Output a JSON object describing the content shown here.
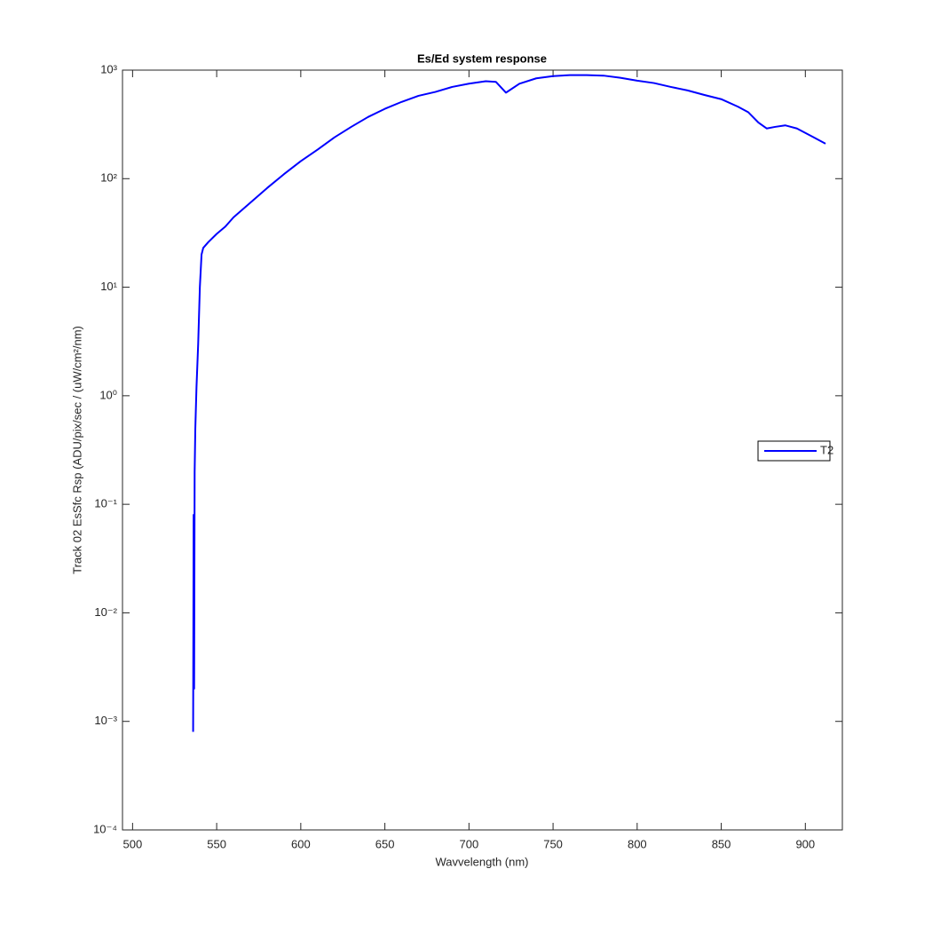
{
  "chart_data": {
    "type": "line",
    "title": "Es/Ed system response",
    "xlabel": "Wavvelength (nm)",
    "ylabel": "Track 02 EsSfc Rsp (ADU/pix/sec / (uW/cm²/nm)",
    "yscale": "log",
    "xlim": [
      494,
      922
    ],
    "ylim": [
      0.0001,
      1000
    ],
    "xticks": [
      500,
      550,
      600,
      650,
      700,
      750,
      800,
      850,
      900
    ],
    "yticks": [
      {
        "value": 0.0001,
        "label": "10⁻⁴"
      },
      {
        "value": 0.001,
        "label": "10⁻³"
      },
      {
        "value": 0.01,
        "label": "10⁻²"
      },
      {
        "value": 0.1,
        "label": "10⁻¹"
      },
      {
        "value": 1,
        "label": "10⁰"
      },
      {
        "value": 10,
        "label": "10¹"
      },
      {
        "value": 100,
        "label": "10²"
      },
      {
        "value": 1000,
        "label": "10³"
      }
    ],
    "legend": "east",
    "x": [
      536,
      536.3,
      536.6,
      536.9,
      537.3,
      538,
      539,
      540,
      541,
      542,
      545,
      550,
      555,
      560,
      570,
      580,
      590,
      600,
      610,
      620,
      630,
      640,
      650,
      660,
      670,
      680,
      690,
      700,
      710,
      716,
      722,
      730,
      740,
      750,
      760,
      770,
      780,
      790,
      800,
      810,
      820,
      830,
      840,
      850,
      860,
      866,
      872,
      877,
      882,
      888,
      895,
      905,
      912
    ],
    "series": [
      {
        "name": "T2",
        "color": "#0000ff",
        "values": [
          0.0008,
          0.08,
          0.002,
          0.2,
          0.5,
          1.2,
          3,
          10,
          20,
          23,
          26,
          31,
          36,
          44,
          60,
          82,
          110,
          145,
          185,
          240,
          300,
          370,
          440,
          510,
          580,
          630,
          700,
          750,
          790,
          780,
          620,
          750,
          840,
          880,
          900,
          900,
          890,
          850,
          800,
          760,
          700,
          650,
          590,
          540,
          460,
          410,
          330,
          290,
          300,
          310,
          290,
          240,
          210
        ]
      }
    ]
  }
}
